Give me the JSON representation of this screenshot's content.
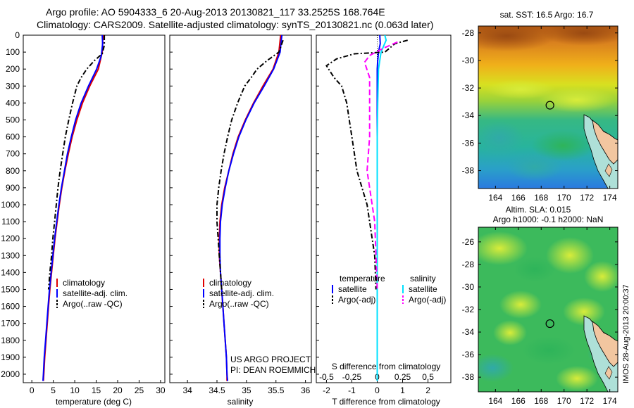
{
  "header": {
    "line1": "Argo profile: AO 5904333_6 20-Aug-2013 20130821_117 33.2525S 168.764E",
    "line2": "Climatology: CARS2009. Satellite-adjusted climatology: synTS_20130821.nc (0.063d later)"
  },
  "credits": {
    "line1": "US ARGO PROJECT",
    "line2": "PI: DEAN ROEMMICH"
  },
  "stamp": "IMOS 28-Aug-2013 20:00:37",
  "colors": {
    "climatology": "#e00000",
    "satellite": "#0000ff",
    "argo": "#000000",
    "salinity_satellite": "#00e0ff",
    "salinity_argo": "#ff00ff"
  },
  "y_axis": {
    "range": [
      0,
      2050
    ],
    "ticks": [
      0,
      100,
      200,
      300,
      400,
      500,
      600,
      700,
      800,
      900,
      1000,
      1100,
      1200,
      1300,
      1400,
      1500,
      1600,
      1700,
      1800,
      1900,
      2000
    ]
  },
  "chart_data": [
    {
      "type": "line",
      "xlabel": "temperature (deg C)",
      "xlim": [
        -2,
        31
      ],
      "ylim": [
        2050,
        0
      ],
      "xticks": [
        0,
        5,
        10,
        15,
        20,
        25,
        30
      ],
      "legend": [
        "climatology",
        "satellite-adj. clim.",
        "Argo(..raw -QC)"
      ],
      "legend_position": "lower-center",
      "series": [
        {
          "name": "climatology",
          "color": "#e00000",
          "dash": "",
          "points": [
            [
              16.6,
              0
            ],
            [
              16.4,
              100
            ],
            [
              15.5,
              200
            ],
            [
              13.5,
              300
            ],
            [
              11.8,
              400
            ],
            [
              10.5,
              500
            ],
            [
              9.4,
              600
            ],
            [
              8.5,
              700
            ],
            [
              7.7,
              800
            ],
            [
              7.0,
              900
            ],
            [
              6.4,
              1000
            ],
            [
              5.9,
              1100
            ],
            [
              5.4,
              1200
            ],
            [
              5.0,
              1300
            ],
            [
              4.6,
              1400
            ],
            [
              4.2,
              1500
            ],
            [
              3.9,
              1600
            ],
            [
              3.6,
              1700
            ],
            [
              3.3,
              1800
            ],
            [
              3.0,
              1900
            ],
            [
              2.8,
              2000
            ],
            [
              2.7,
              2040
            ]
          ]
        },
        {
          "name": "satellite-adj. clim.",
          "color": "#0000ff",
          "dash": "",
          "points": [
            [
              16.4,
              0
            ],
            [
              16.5,
              50
            ],
            [
              16.2,
              120
            ],
            [
              15.1,
              200
            ],
            [
              13.2,
              300
            ],
            [
              11.5,
              400
            ],
            [
              10.2,
              500
            ],
            [
              9.2,
              600
            ],
            [
              8.3,
              700
            ],
            [
              7.6,
              800
            ],
            [
              6.9,
              900
            ],
            [
              6.3,
              1000
            ],
            [
              5.8,
              1100
            ],
            [
              5.3,
              1200
            ],
            [
              4.9,
              1300
            ],
            [
              4.5,
              1400
            ],
            [
              4.1,
              1500
            ],
            [
              3.8,
              1600
            ],
            [
              3.5,
              1700
            ],
            [
              3.2,
              1800
            ],
            [
              2.9,
              1900
            ],
            [
              2.7,
              2000
            ],
            [
              2.6,
              2040
            ]
          ]
        },
        {
          "name": "Argo(..raw -QC)",
          "color": "#000000",
          "dash": "7,3,2,3",
          "points": [
            [
              16.9,
              0
            ],
            [
              16.9,
              60
            ],
            [
              16.4,
              110
            ],
            [
              14.6,
              150
            ],
            [
              12.8,
              200
            ],
            [
              11.5,
              250
            ],
            [
              10.5,
              300
            ],
            [
              9.5,
              400
            ],
            [
              8.6,
              500
            ],
            [
              7.8,
              600
            ],
            [
              7.2,
              700
            ],
            [
              6.6,
              800
            ],
            [
              6.1,
              900
            ],
            [
              5.7,
              1000
            ],
            [
              5.3,
              1100
            ],
            [
              4.9,
              1200
            ],
            [
              4.6,
              1300
            ],
            [
              4.2,
              1400
            ],
            [
              3.9,
              1500
            ]
          ]
        }
      ]
    },
    {
      "type": "line",
      "xlabel": "salinity",
      "xlim": [
        33.7,
        36.1
      ],
      "ylim": [
        2050,
        0
      ],
      "xticks": [
        34,
        34.5,
        35,
        35.5,
        36
      ],
      "legend": [
        "climatology",
        "satellite-adj. clim.",
        "Argo(..raw -QC)"
      ],
      "legend_position": "lower-center",
      "series": [
        {
          "name": "climatology",
          "color": "#e00000",
          "dash": "",
          "points": [
            [
              35.58,
              0
            ],
            [
              35.55,
              100
            ],
            [
              35.45,
              200
            ],
            [
              35.28,
              300
            ],
            [
              35.12,
              400
            ],
            [
              34.98,
              500
            ],
            [
              34.86,
              600
            ],
            [
              34.77,
              700
            ],
            [
              34.7,
              800
            ],
            [
              34.63,
              900
            ],
            [
              34.58,
              1000
            ],
            [
              34.55,
              1100
            ],
            [
              34.54,
              1200
            ],
            [
              34.54,
              1300
            ],
            [
              34.56,
              1400
            ],
            [
              34.58,
              1500
            ],
            [
              34.6,
              1600
            ],
            [
              34.62,
              1700
            ],
            [
              34.64,
              1800
            ],
            [
              34.66,
              1900
            ],
            [
              34.67,
              2000
            ],
            [
              34.67,
              2040
            ]
          ]
        },
        {
          "name": "satellite-adj. clim.",
          "color": "#0000ff",
          "dash": "",
          "points": [
            [
              35.6,
              0
            ],
            [
              35.57,
              100
            ],
            [
              35.46,
              200
            ],
            [
              35.3,
              300
            ],
            [
              35.13,
              400
            ],
            [
              34.99,
              500
            ],
            [
              34.87,
              600
            ],
            [
              34.78,
              700
            ],
            [
              34.7,
              800
            ],
            [
              34.64,
              900
            ],
            [
              34.59,
              1000
            ],
            [
              34.56,
              1100
            ],
            [
              34.55,
              1200
            ],
            [
              34.55,
              1300
            ],
            [
              34.56,
              1400
            ],
            [
              34.58,
              1500
            ],
            [
              34.6,
              1600
            ],
            [
              34.62,
              1700
            ],
            [
              34.64,
              1800
            ],
            [
              34.66,
              1900
            ],
            [
              34.67,
              2000
            ],
            [
              34.68,
              2040
            ]
          ]
        },
        {
          "name": "Argo(..raw -QC)",
          "color": "#000000",
          "dash": "7,3,2,3",
          "points": [
            [
              35.62,
              30
            ],
            [
              35.55,
              100
            ],
            [
              35.35,
              150
            ],
            [
              35.18,
              200
            ],
            [
              35.08,
              250
            ],
            [
              34.97,
              300
            ],
            [
              34.85,
              400
            ],
            [
              34.75,
              500
            ],
            [
              34.68,
              600
            ],
            [
              34.62,
              700
            ],
            [
              34.57,
              800
            ],
            [
              34.53,
              900
            ],
            [
              34.5,
              1000
            ],
            [
              34.5,
              1100
            ],
            [
              34.52,
              1200
            ],
            [
              34.54,
              1300
            ],
            [
              34.56,
              1400
            ],
            [
              34.58,
              1500
            ]
          ]
        }
      ]
    },
    {
      "type": "line",
      "xlabel": "T difference from climatology",
      "xlim": [
        -2.4,
        2.9
      ],
      "ylim": [
        2050,
        0
      ],
      "xticks": [
        -2,
        -1,
        0,
        1,
        2
      ],
      "xticklabels": [
        "-2",
        "-1",
        "0",
        "1",
        "2"
      ],
      "top_axis": {
        "label": "S difference from climatology",
        "ticklabels": [
          "-0.5",
          "-0.25",
          "0",
          "0.25",
          "0.5"
        ],
        "positions": [
          -2,
          -1,
          0,
          1,
          2
        ]
      },
      "legend": [
        "temperature",
        "satellite",
        "Argo(-adj)",
        "salinity",
        "satellite",
        "Argo(-adj)"
      ],
      "legend_position": "lower-center",
      "series": [
        {
          "name": "satellite",
          "color": "#0000ff",
          "dash": "",
          "points": [
            [
              0.1,
              0
            ],
            [
              0.12,
              50
            ],
            [
              0.05,
              100
            ],
            [
              0.02,
              150
            ],
            [
              0.0,
              200
            ],
            [
              0.0,
              2040
            ]
          ]
        },
        {
          "name": "Argo(-adj)",
          "color": "#000000",
          "dash": "7,3,2,3",
          "points": [
            [
              1.2,
              30
            ],
            [
              0.7,
              50
            ],
            [
              0.3,
              100
            ],
            [
              -0.9,
              110
            ],
            [
              -1.6,
              140
            ],
            [
              -2.0,
              180
            ],
            [
              -1.7,
              250
            ],
            [
              -1.4,
              300
            ],
            [
              -1.2,
              400
            ],
            [
              -1.1,
              500
            ],
            [
              -1.0,
              600
            ],
            [
              -0.9,
              700
            ],
            [
              -0.8,
              800
            ],
            [
              -0.6,
              900
            ],
            [
              -0.4,
              1000
            ],
            [
              -0.3,
              1100
            ],
            [
              -0.2,
              1200
            ],
            [
              -0.1,
              1300
            ],
            [
              -0.05,
              1500
            ]
          ]
        },
        {
          "name": "satellite",
          "color": "#00e0ff",
          "dash": "",
          "points": [
            [
              0.3,
              0
            ],
            [
              0.35,
              30
            ],
            [
              0.15,
              100
            ],
            [
              0.05,
              200
            ],
            [
              0.02,
              400
            ],
            [
              0.0,
              600
            ],
            [
              0.0,
              2040
            ]
          ]
        },
        {
          "name": "Argo(-adj)",
          "color": "#ff00ff",
          "dash": "8,4",
          "points": [
            [
              0.8,
              40
            ],
            [
              0.2,
              80
            ],
            [
              -0.3,
              120
            ],
            [
              -0.5,
              160
            ],
            [
              -0.3,
              250
            ],
            [
              -0.3,
              400
            ],
            [
              -0.3,
              600
            ],
            [
              -0.4,
              800
            ],
            [
              -0.3,
              900
            ],
            [
              -0.2,
              1000
            ],
            [
              -0.1,
              1100
            ],
            [
              -0.05,
              1300
            ],
            [
              0.0,
              1500
            ]
          ]
        }
      ]
    },
    {
      "type": "heatmap",
      "title": "sat. SST: 16.5 Argo: 16.7",
      "xlim": [
        162.5,
        174.7
      ],
      "ylim": [
        -39.3,
        -27.5
      ],
      "xticks": [
        164,
        166,
        168,
        170,
        172,
        174
      ],
      "yticks": [
        -28,
        -30,
        -32,
        -34,
        -36,
        -38
      ],
      "marker": [
        168.764,
        -33.2525
      ]
    },
    {
      "type": "heatmap",
      "title": "Altim. SLA: 0.015",
      "subtitle": "Argo h1000: -0.1 h2000: NaN",
      "xlim": [
        162.5,
        174.7
      ],
      "ylim": [
        -39.3,
        -24.7
      ],
      "xticks": [
        164,
        166,
        168,
        170,
        172,
        174
      ],
      "yticks": [
        -26,
        -28,
        -30,
        -32,
        -34,
        -36,
        -38
      ],
      "marker": [
        168.764,
        -33.2525
      ]
    }
  ]
}
